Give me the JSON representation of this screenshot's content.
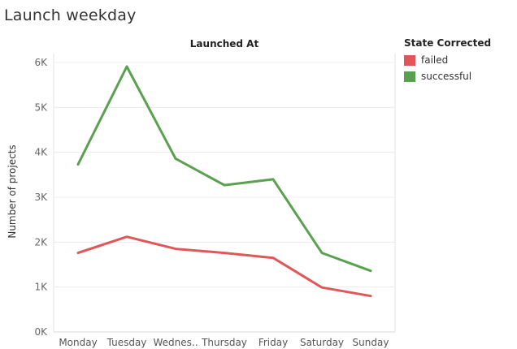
{
  "title": "Launch weekday",
  "legend": {
    "title": "State Corrected",
    "items": [
      {
        "label": "failed",
        "color": "#e15759"
      },
      {
        "label": "successful",
        "color": "#59a14f"
      }
    ]
  },
  "chart_data": {
    "type": "line",
    "title": "Launch weekday",
    "column_header": "Launched At",
    "xlabel": "",
    "ylabel": "Number of projects",
    "categories": [
      "Monday",
      "Tuesday",
      "Wednes..",
      "Thursday",
      "Friday",
      "Saturday",
      "Sunday"
    ],
    "ylim": [
      0,
      6000
    ],
    "yticks": [
      0,
      1000,
      2000,
      3000,
      4000,
      5000,
      6000
    ],
    "ytick_labels": [
      "0K",
      "1K",
      "2K",
      "3K",
      "4K",
      "5K",
      "6K"
    ],
    "grid": true,
    "legend_position": "top-right",
    "series": [
      {
        "name": "failed",
        "color": "#e15759",
        "values": [
          1760,
          2120,
          1850,
          1760,
          1650,
          990,
          800
        ]
      },
      {
        "name": "successful",
        "color": "#59a14f",
        "values": [
          3730,
          5910,
          3860,
          3270,
          3400,
          1760,
          1360
        ]
      }
    ]
  }
}
